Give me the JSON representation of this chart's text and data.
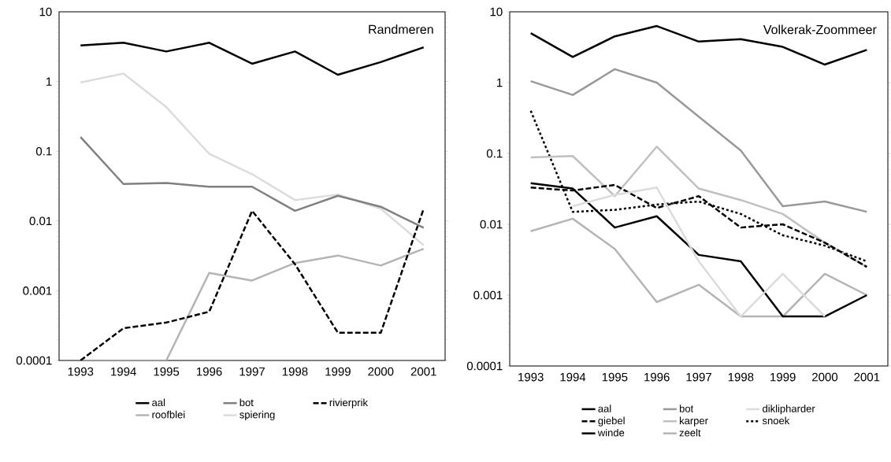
{
  "chart_data": [
    {
      "type": "line",
      "title": "Randmeren",
      "categories": [
        "1993",
        "1994",
        "1995",
        "1996",
        "1997",
        "1998",
        "1999",
        "2000",
        "2001"
      ],
      "log": true,
      "ylim": [
        0.0001,
        10
      ],
      "yticks": [
        0.0001,
        0.001,
        0.01,
        0.1,
        1,
        10
      ],
      "legend": "bottom",
      "series": [
        {
          "name": "aal",
          "color": "#000000",
          "line_style": "solid",
          "values": [
            3.3,
            3.6,
            2.7,
            3.6,
            1.8,
            2.7,
            1.25,
            1.9,
            3.1
          ]
        },
        {
          "name": "bot",
          "color": "#808080",
          "line_style": "solid",
          "values": [
            0.16,
            0.034,
            0.035,
            0.031,
            0.031,
            0.014,
            0.023,
            0.016,
            0.008
          ]
        },
        {
          "name": "rivierprik",
          "color": "#000000",
          "line_style": "dashed",
          "values": [
            0.0001,
            0.00029,
            0.00035,
            0.0005,
            0.014,
            0.0024,
            0.00025,
            0.00025,
            0.015
          ]
        },
        {
          "name": "roofblei",
          "color": "#b4b4b4",
          "line_style": "solid",
          "values": [
            0.0001,
            0.0001,
            0.0001,
            0.0018,
            0.0014,
            0.0025,
            0.0032,
            0.0023,
            0.004
          ]
        },
        {
          "name": "spiering",
          "color": "#dcdcdc",
          "line_style": "solid",
          "values": [
            0.97,
            1.3,
            0.43,
            0.092,
            0.047,
            0.02,
            0.024,
            0.015,
            0.0045
          ]
        }
      ]
    },
    {
      "type": "line",
      "title": "Volkerak-Zoommeer",
      "categories": [
        "1993",
        "1994",
        "1995",
        "1996",
        "1997",
        "1998",
        "1999",
        "2000",
        "2001"
      ],
      "log": true,
      "ylim": [
        0.0001,
        10
      ],
      "yticks": [
        0.0001,
        0.001,
        0.01,
        0.1,
        1,
        10
      ],
      "legend": "bottom",
      "series": [
        {
          "name": "aal",
          "color": "#000000",
          "line_style": "solid",
          "values": [
            5,
            2.3,
            4.5,
            6.3,
            3.8,
            4.1,
            3.2,
            1.8,
            2.9
          ]
        },
        {
          "name": "bot",
          "color": "#999999",
          "line_style": "solid",
          "values": [
            1.05,
            0.67,
            1.55,
            1.0,
            0.33,
            0.11,
            0.018,
            0.021,
            0.015
          ]
        },
        {
          "name": "diklipharder",
          "color": "#dcdcdc",
          "line_style": "solid",
          "values": [
            null,
            0.018,
            0.026,
            0.033,
            0.003,
            0.0005,
            0.002,
            0.0005,
            null
          ]
        },
        {
          "name": "giebel",
          "color": "#000000",
          "line_style": "dashed",
          "values": [
            0.033,
            0.03,
            0.036,
            0.017,
            0.025,
            0.009,
            0.01,
            0.0055,
            0.0025
          ]
        },
        {
          "name": "karper",
          "color": "#c0c0c0",
          "line_style": "solid",
          "values": [
            0.088,
            0.092,
            0.025,
            0.125,
            0.032,
            0.022,
            0.014,
            0.0055,
            0.0025
          ]
        },
        {
          "name": "snoek",
          "color": "#000000",
          "line_style": "dotted",
          "values": [
            0.4,
            0.015,
            0.016,
            0.019,
            0.021,
            0.014,
            0.007,
            0.005,
            0.003
          ]
        },
        {
          "name": "winde",
          "color": "#000000",
          "line_style": "solid",
          "values": [
            0.038,
            0.032,
            0.009,
            0.013,
            0.0037,
            0.003,
            0.0005,
            0.0005,
            0.001
          ]
        },
        {
          "name": "zeelt",
          "color": "#b4b4b4",
          "line_style": "solid",
          "values": [
            0.008,
            0.012,
            0.0045,
            0.0008,
            0.0014,
            0.0005,
            0.0005,
            0.002,
            0.001
          ]
        }
      ]
    }
  ]
}
